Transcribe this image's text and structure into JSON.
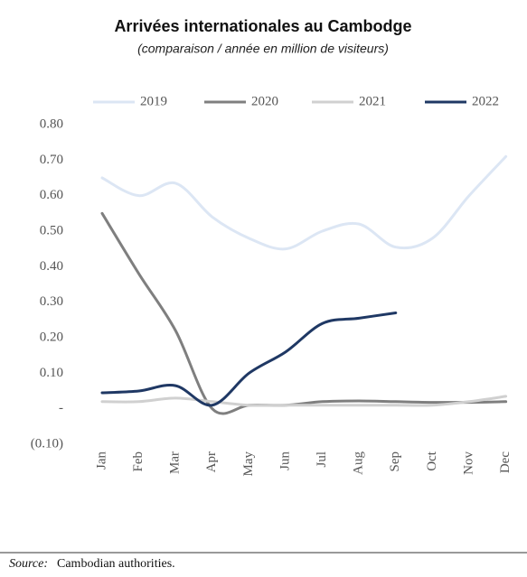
{
  "chart_data": {
    "type": "line",
    "title": "Arrivées internationales au Cambodge",
    "subtitle": "(comparaison / année en million de visiteurs)",
    "categories": [
      "Jan",
      "Feb",
      "Mar",
      "Apr",
      "May",
      "Jun",
      "Jul",
      "Aug",
      "Sep",
      "Oct",
      "Nov",
      "Dec"
    ],
    "series": [
      {
        "name": "2019",
        "color": "#dce6f4",
        "values": [
          0.65,
          0.6,
          0.635,
          0.54,
          0.48,
          0.45,
          0.5,
          0.52,
          0.455,
          0.48,
          0.6,
          0.71
        ]
      },
      {
        "name": "2020",
        "color": "#7f7f7f",
        "values": [
          0.55,
          0.38,
          0.22,
          0.0,
          0.01,
          0.01,
          0.02,
          0.022,
          0.02,
          0.018,
          0.018,
          0.02
        ]
      },
      {
        "name": "2021",
        "color": "#d0d0d0",
        "values": [
          0.02,
          0.02,
          0.03,
          0.02,
          0.01,
          0.01,
          0.01,
          0.01,
          0.01,
          0.01,
          0.02,
          0.035
        ]
      },
      {
        "name": "2022",
        "color": "#1f3864",
        "values": [
          0.045,
          0.05,
          0.065,
          0.01,
          0.1,
          0.16,
          0.24,
          0.255,
          0.27,
          null,
          null,
          null
        ]
      }
    ],
    "ylim": [
      -0.1,
      0.8
    ],
    "yticks": [
      {
        "value": 0.8,
        "label": "0.80"
      },
      {
        "value": 0.7,
        "label": "0.70"
      },
      {
        "value": 0.6,
        "label": "0.60"
      },
      {
        "value": 0.5,
        "label": "0.50"
      },
      {
        "value": 0.4,
        "label": "0.40"
      },
      {
        "value": 0.3,
        "label": "0.30"
      },
      {
        "value": 0.2,
        "label": "0.20"
      },
      {
        "value": 0.1,
        "label": "0.10"
      },
      {
        "value": 0,
        "label": "-"
      },
      {
        "value": -0.1,
        "label": "(0.10)"
      }
    ],
    "grid": false,
    "legend": "top",
    "source_label": "Source:",
    "source_text": "Cambodian authorities."
  }
}
